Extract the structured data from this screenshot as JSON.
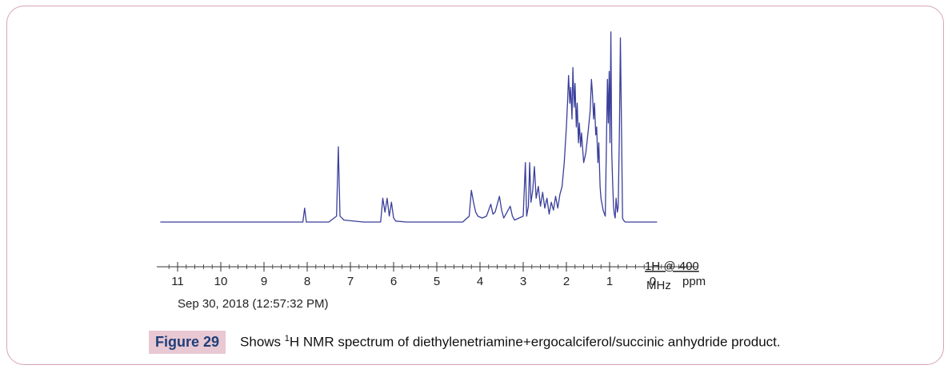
{
  "chart_data": {
    "type": "line",
    "xlim": [
      11.4,
      -1.2
    ],
    "ylim": [
      0,
      100
    ],
    "x_ticks": [
      11,
      10,
      9,
      8,
      7,
      6,
      5,
      4,
      3,
      2,
      1,
      0
    ],
    "x_tick_labels": [
      "11",
      "10",
      "9",
      "8",
      "7",
      "6",
      "5",
      "4",
      "3",
      "2",
      "1",
      "0"
    ],
    "xlabel": "ppm",
    "instrument_label": "1H @ 400 MHz",
    "date_label": "Sep 30, 2018 (12:57:32 PM)",
    "grid": false,
    "series": [
      {
        "color": "#3a3f9a",
        "x": [
          11.4,
          8.1,
          8.06,
          8.02,
          7.5,
          7.32,
          7.28,
          7.24,
          7.15,
          6.7,
          6.3,
          6.25,
          6.2,
          6.15,
          6.1,
          6.05,
          6.0,
          5.95,
          5.7,
          4.4,
          4.25,
          4.2,
          4.15,
          4.1,
          4.05,
          3.95,
          3.85,
          3.75,
          3.7,
          3.65,
          3.55,
          3.5,
          3.45,
          3.3,
          3.25,
          3.2,
          3.0,
          2.95,
          2.92,
          2.88,
          2.85,
          2.82,
          2.78,
          2.74,
          2.7,
          2.65,
          2.6,
          2.55,
          2.5,
          2.45,
          2.4,
          2.35,
          2.3,
          2.25,
          2.2,
          2.15,
          2.1,
          2.05,
          2.0,
          1.97,
          1.95,
          1.92,
          1.9,
          1.87,
          1.85,
          1.82,
          1.8,
          1.77,
          1.75,
          1.72,
          1.7,
          1.67,
          1.65,
          1.62,
          1.6,
          1.55,
          1.5,
          1.45,
          1.42,
          1.4,
          1.37,
          1.35,
          1.32,
          1.3,
          1.27,
          1.25,
          1.22,
          1.2,
          1.15,
          1.1,
          1.05,
          1.03,
          1.01,
          0.99,
          0.97,
          0.95,
          0.93,
          0.91,
          0.89,
          0.87,
          0.85,
          0.82,
          0.8,
          0.77,
          0.75,
          0.72,
          0.7,
          0.68,
          0.66,
          0.64,
          0.62,
          0.6,
          0.55,
          0.4,
          -0.1
        ],
        "y": [
          0,
          0,
          7,
          0,
          0,
          3,
          38,
          3,
          1,
          0,
          0,
          12,
          5,
          12,
          3,
          10,
          2,
          0.5,
          0,
          0,
          3,
          16,
          10,
          5,
          3,
          2,
          3,
          9,
          4,
          5,
          13,
          6,
          2,
          8,
          3,
          1,
          3,
          30,
          3,
          8,
          30,
          10,
          16,
          28,
          12,
          18,
          8,
          15,
          7,
          12,
          4,
          10,
          6,
          13,
          7,
          14,
          18,
          30,
          48,
          62,
          74,
          60,
          68,
          52,
          78,
          58,
          70,
          48,
          60,
          40,
          50,
          38,
          45,
          36,
          30,
          35,
          45,
          56,
          72,
          66,
          52,
          60,
          44,
          48,
          30,
          40,
          18,
          12,
          6,
          3,
          72,
          50,
          76,
          40,
          96,
          35,
          20,
          8,
          4,
          2,
          12,
          5,
          8,
          50,
          93,
          40,
          2,
          1,
          0.5,
          0,
          0,
          0,
          0,
          0,
          0
        ]
      }
    ]
  },
  "caption": {
    "label": "Figure 29",
    "prefix": "Shows ",
    "sup": "1",
    "rest": "H NMR spectrum of diethylenetriamine+ergocalciferol/succinic anhydride product."
  }
}
